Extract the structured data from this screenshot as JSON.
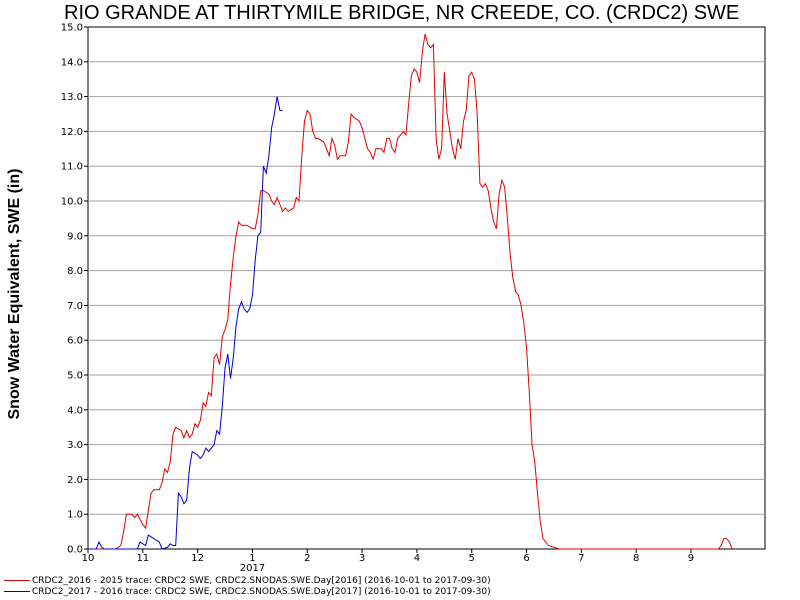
{
  "chart_data": {
    "type": "line",
    "title": "RIO GRANDE AT THIRTYMILE BRIDGE, NR CREEDE, CO. (CRDC2) SWE",
    "ylabel": "Snow Water Equivalent, SWE (in)",
    "xlabel": "",
    "ylim": [
      0,
      15
    ],
    "xlim": [
      0,
      12.35
    ],
    "grid": "horizontal",
    "legend_position": "bottom-left",
    "y_ticks": [
      "0.0",
      "1.0",
      "2.0",
      "3.0",
      "4.0",
      "5.0",
      "6.0",
      "7.0",
      "8.0",
      "9.0",
      "10.0",
      "11.0",
      "12.0",
      "13.0",
      "14.0",
      "15.0"
    ],
    "x_ticks": [
      {
        "label": "10",
        "x": 0
      },
      {
        "label": "11",
        "x": 1
      },
      {
        "label": "12",
        "x": 2
      },
      {
        "label": "1",
        "x": 3
      },
      {
        "label": "2",
        "x": 4
      },
      {
        "label": "3",
        "x": 5
      },
      {
        "label": "4",
        "x": 6
      },
      {
        "label": "5",
        "x": 7
      },
      {
        "label": "6",
        "x": 8
      },
      {
        "label": "7",
        "x": 9
      },
      {
        "label": "8",
        "x": 10
      },
      {
        "label": "9",
        "x": 11
      }
    ],
    "year_label": {
      "text": "2017",
      "x": 3
    },
    "series": [
      {
        "name": "CRDC2_2016 - 2015 trace: CRDC2 SWE, CRDC2.SNODAS.SWE.Day[2016] (2016-10-01 to 2017-09-30)",
        "color": "#e00000",
        "points": [
          [
            0,
            0
          ],
          [
            0.5,
            0
          ],
          [
            0.6,
            0.1
          ],
          [
            0.65,
            0.5
          ],
          [
            0.7,
            1.0
          ],
          [
            0.8,
            1.0
          ],
          [
            0.85,
            0.9
          ],
          [
            0.9,
            1.0
          ],
          [
            0.95,
            0.85
          ],
          [
            1.0,
            0.7
          ],
          [
            1.05,
            0.6
          ],
          [
            1.1,
            1.1
          ],
          [
            1.15,
            1.6
          ],
          [
            1.2,
            1.7
          ],
          [
            1.3,
            1.7
          ],
          [
            1.35,
            1.9
          ],
          [
            1.4,
            2.3
          ],
          [
            1.45,
            2.2
          ],
          [
            1.5,
            2.5
          ],
          [
            1.55,
            3.3
          ],
          [
            1.6,
            3.5
          ],
          [
            1.7,
            3.4
          ],
          [
            1.75,
            3.2
          ],
          [
            1.8,
            3.4
          ],
          [
            1.85,
            3.2
          ],
          [
            1.9,
            3.3
          ],
          [
            1.95,
            3.6
          ],
          [
            2.0,
            3.5
          ],
          [
            2.05,
            3.7
          ],
          [
            2.1,
            4.2
          ],
          [
            2.15,
            4.1
          ],
          [
            2.2,
            4.5
          ],
          [
            2.25,
            4.4
          ],
          [
            2.3,
            5.5
          ],
          [
            2.35,
            5.6
          ],
          [
            2.4,
            5.3
          ],
          [
            2.45,
            6.1
          ],
          [
            2.5,
            6.3
          ],
          [
            2.55,
            6.6
          ],
          [
            2.6,
            7.6
          ],
          [
            2.65,
            8.4
          ],
          [
            2.7,
            9.0
          ],
          [
            2.75,
            9.4
          ],
          [
            2.8,
            9.3
          ],
          [
            2.9,
            9.3
          ],
          [
            3.0,
            9.2
          ],
          [
            3.05,
            9.2
          ],
          [
            3.1,
            9.6
          ],
          [
            3.15,
            10.3
          ],
          [
            3.2,
            10.3
          ],
          [
            3.3,
            10.2
          ],
          [
            3.35,
            10.0
          ],
          [
            3.4,
            9.9
          ],
          [
            3.45,
            10.1
          ],
          [
            3.5,
            9.9
          ],
          [
            3.55,
            9.7
          ],
          [
            3.6,
            9.8
          ],
          [
            3.65,
            9.7
          ],
          [
            3.75,
            9.8
          ],
          [
            3.8,
            10.1
          ],
          [
            3.85,
            10.0
          ],
          [
            3.9,
            11.3
          ],
          [
            3.95,
            12.3
          ],
          [
            4.0,
            12.6
          ],
          [
            4.05,
            12.5
          ],
          [
            4.1,
            12.0
          ],
          [
            4.15,
            11.8
          ],
          [
            4.2,
            11.8
          ],
          [
            4.3,
            11.7
          ],
          [
            4.35,
            11.5
          ],
          [
            4.4,
            11.3
          ],
          [
            4.45,
            11.8
          ],
          [
            4.5,
            11.6
          ],
          [
            4.55,
            11.2
          ],
          [
            4.6,
            11.3
          ],
          [
            4.7,
            11.3
          ],
          [
            4.75,
            11.7
          ],
          [
            4.8,
            12.5
          ],
          [
            4.85,
            12.4
          ],
          [
            4.95,
            12.3
          ],
          [
            5.0,
            12.1
          ],
          [
            5.05,
            11.8
          ],
          [
            5.1,
            11.5
          ],
          [
            5.15,
            11.4
          ],
          [
            5.2,
            11.2
          ],
          [
            5.25,
            11.5
          ],
          [
            5.35,
            11.5
          ],
          [
            5.4,
            11.4
          ],
          [
            5.45,
            11.8
          ],
          [
            5.5,
            11.8
          ],
          [
            5.55,
            11.5
          ],
          [
            5.6,
            11.4
          ],
          [
            5.65,
            11.8
          ],
          [
            5.7,
            11.9
          ],
          [
            5.75,
            12.0
          ],
          [
            5.8,
            11.9
          ],
          [
            5.85,
            12.8
          ],
          [
            5.9,
            13.6
          ],
          [
            5.95,
            13.8
          ],
          [
            6.0,
            13.7
          ],
          [
            6.05,
            13.4
          ],
          [
            6.1,
            14.3
          ],
          [
            6.15,
            14.8
          ],
          [
            6.2,
            14.5
          ],
          [
            6.25,
            14.4
          ],
          [
            6.3,
            14.5
          ],
          [
            6.35,
            11.8
          ],
          [
            6.4,
            11.2
          ],
          [
            6.45,
            11.5
          ],
          [
            6.5,
            13.7
          ],
          [
            6.55,
            12.5
          ],
          [
            6.6,
            12.0
          ],
          [
            6.65,
            11.5
          ],
          [
            6.7,
            11.2
          ],
          [
            6.75,
            11.8
          ],
          [
            6.8,
            11.5
          ],
          [
            6.85,
            12.3
          ],
          [
            6.9,
            12.6
          ],
          [
            6.95,
            13.6
          ],
          [
            7.0,
            13.7
          ],
          [
            7.05,
            13.5
          ],
          [
            7.1,
            12.5
          ],
          [
            7.15,
            10.5
          ],
          [
            7.2,
            10.4
          ],
          [
            7.25,
            10.5
          ],
          [
            7.3,
            10.3
          ],
          [
            7.35,
            9.8
          ],
          [
            7.4,
            9.4
          ],
          [
            7.45,
            9.2
          ],
          [
            7.5,
            10.2
          ],
          [
            7.55,
            10.6
          ],
          [
            7.6,
            10.4
          ],
          [
            7.65,
            9.5
          ],
          [
            7.7,
            8.5
          ],
          [
            7.75,
            7.8
          ],
          [
            7.8,
            7.4
          ],
          [
            7.85,
            7.3
          ],
          [
            7.9,
            7.0
          ],
          [
            7.95,
            6.5
          ],
          [
            8.0,
            5.8
          ],
          [
            8.05,
            4.5
          ],
          [
            8.1,
            3.0
          ],
          [
            8.15,
            2.5
          ],
          [
            8.2,
            1.6
          ],
          [
            8.25,
            0.8
          ],
          [
            8.3,
            0.3
          ],
          [
            8.4,
            0.1
          ],
          [
            8.5,
            0.05
          ],
          [
            8.6,
            0.0
          ],
          [
            11.5,
            0.0
          ],
          [
            11.55,
            0.1
          ],
          [
            11.6,
            0.3
          ],
          [
            11.65,
            0.3
          ],
          [
            11.7,
            0.2
          ],
          [
            11.75,
            0.0
          ]
        ]
      },
      {
        "name": "CRDC2_2017 - 2016 trace: CRDC2 SWE, CRDC2.SNODAS.SWE.Day[2017] (2016-10-01 to 2017-09-30)",
        "color": "#0000cc",
        "points": [
          [
            0,
            0
          ],
          [
            0.15,
            0
          ],
          [
            0.2,
            0.2
          ],
          [
            0.25,
            0.05
          ],
          [
            0.3,
            0
          ],
          [
            0.9,
            0
          ],
          [
            0.95,
            0.2
          ],
          [
            1.0,
            0.15
          ],
          [
            1.05,
            0.1
          ],
          [
            1.1,
            0.4
          ],
          [
            1.2,
            0.3
          ],
          [
            1.3,
            0.2
          ],
          [
            1.35,
            0
          ],
          [
            1.45,
            0.05
          ],
          [
            1.5,
            0.15
          ],
          [
            1.55,
            0.1
          ],
          [
            1.6,
            0.1
          ],
          [
            1.65,
            1.6
          ],
          [
            1.7,
            1.5
          ],
          [
            1.75,
            1.3
          ],
          [
            1.8,
            1.4
          ],
          [
            1.85,
            2.3
          ],
          [
            1.9,
            2.8
          ],
          [
            2.0,
            2.7
          ],
          [
            2.05,
            2.6
          ],
          [
            2.1,
            2.7
          ],
          [
            2.15,
            2.9
          ],
          [
            2.2,
            2.8
          ],
          [
            2.3,
            3.0
          ],
          [
            2.35,
            3.4
          ],
          [
            2.4,
            3.3
          ],
          [
            2.45,
            4.1
          ],
          [
            2.5,
            5.2
          ],
          [
            2.55,
            5.6
          ],
          [
            2.6,
            4.9
          ],
          [
            2.65,
            5.5
          ],
          [
            2.7,
            6.4
          ],
          [
            2.75,
            6.9
          ],
          [
            2.8,
            7.1
          ],
          [
            2.85,
            6.9
          ],
          [
            2.9,
            6.8
          ],
          [
            2.95,
            6.9
          ],
          [
            3.0,
            7.3
          ],
          [
            3.05,
            8.3
          ],
          [
            3.1,
            9.0
          ],
          [
            3.15,
            9.1
          ],
          [
            3.2,
            11.0
          ],
          [
            3.25,
            10.8
          ],
          [
            3.3,
            11.3
          ],
          [
            3.35,
            12.1
          ],
          [
            3.4,
            12.5
          ],
          [
            3.45,
            13.0
          ],
          [
            3.5,
            12.6
          ],
          [
            3.55,
            12.6
          ]
        ]
      }
    ]
  }
}
